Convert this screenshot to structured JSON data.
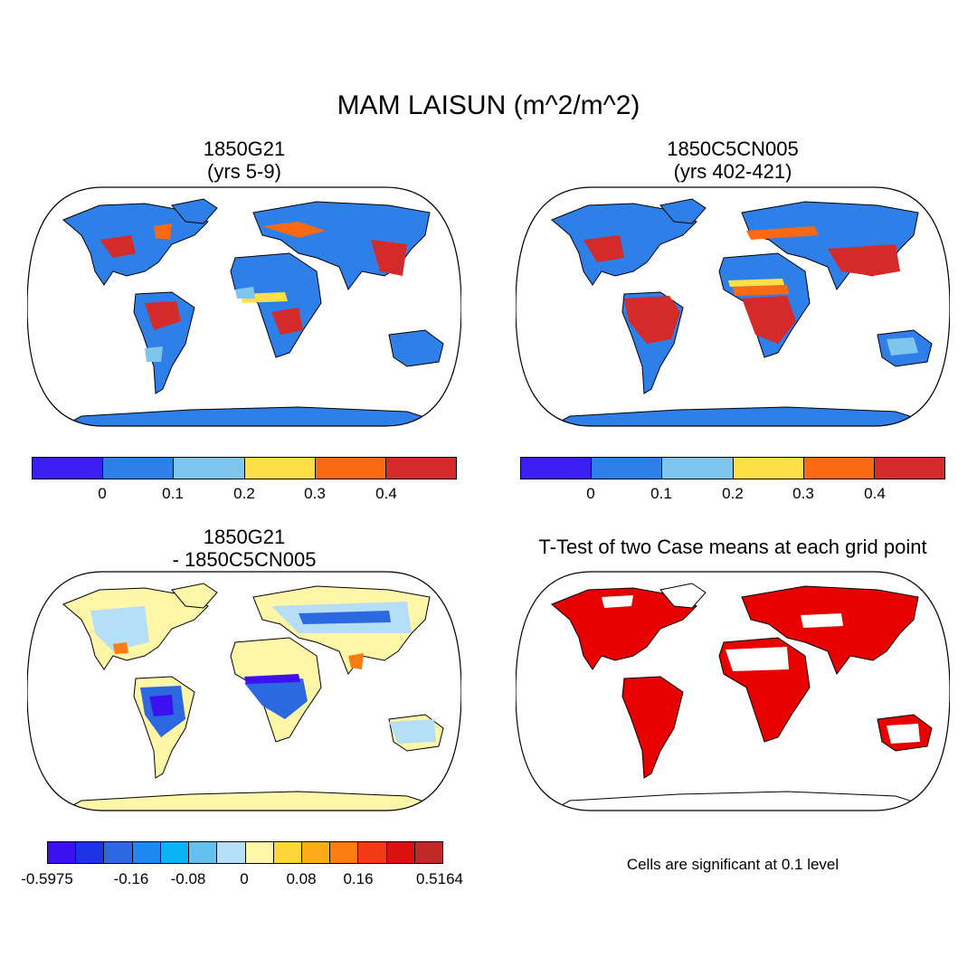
{
  "title": "MAM LAISUN (m^2/m^2)",
  "panels": {
    "top_left": {
      "title_line1": "1850G21",
      "title_line2": "(yrs 5-9)"
    },
    "top_right": {
      "title_line1": "1850C5CN005",
      "title_line2": "(yrs 402-421)"
    },
    "bottom_left": {
      "title_line1": "1850G21",
      "title_line2": "- 1850C5CN005"
    },
    "bottom_right": {
      "title": "T-Test of two Case means at each grid point",
      "note": "Cells are significant at 0.1 level"
    }
  },
  "colorbar_abs": {
    "colors": [
      "#3d1ef0",
      "#2f7fe8",
      "#7fc6ee",
      "#fde048",
      "#fb6a12",
      "#d42a2a"
    ],
    "tick_labels": [
      "0",
      "0.1",
      "0.2",
      "0.3",
      "0.4"
    ]
  },
  "colorbar_diff": {
    "colors": [
      "#3d10f0",
      "#1d33e6",
      "#2c68e0",
      "#1f87f0",
      "#0ab3f3",
      "#64c0ef",
      "#b6def6",
      "#fff6a8",
      "#fdd63a",
      "#fcac17",
      "#fb7c13",
      "#f23a14",
      "#db1010",
      "#c22828"
    ],
    "tick_labels": [
      "-0.5975",
      "-0.16",
      "-0.08",
      "0",
      "0.08",
      "0.16",
      "0.5164"
    ]
  },
  "significance_color": "#e80000",
  "ocean_color": "#ffffff"
}
